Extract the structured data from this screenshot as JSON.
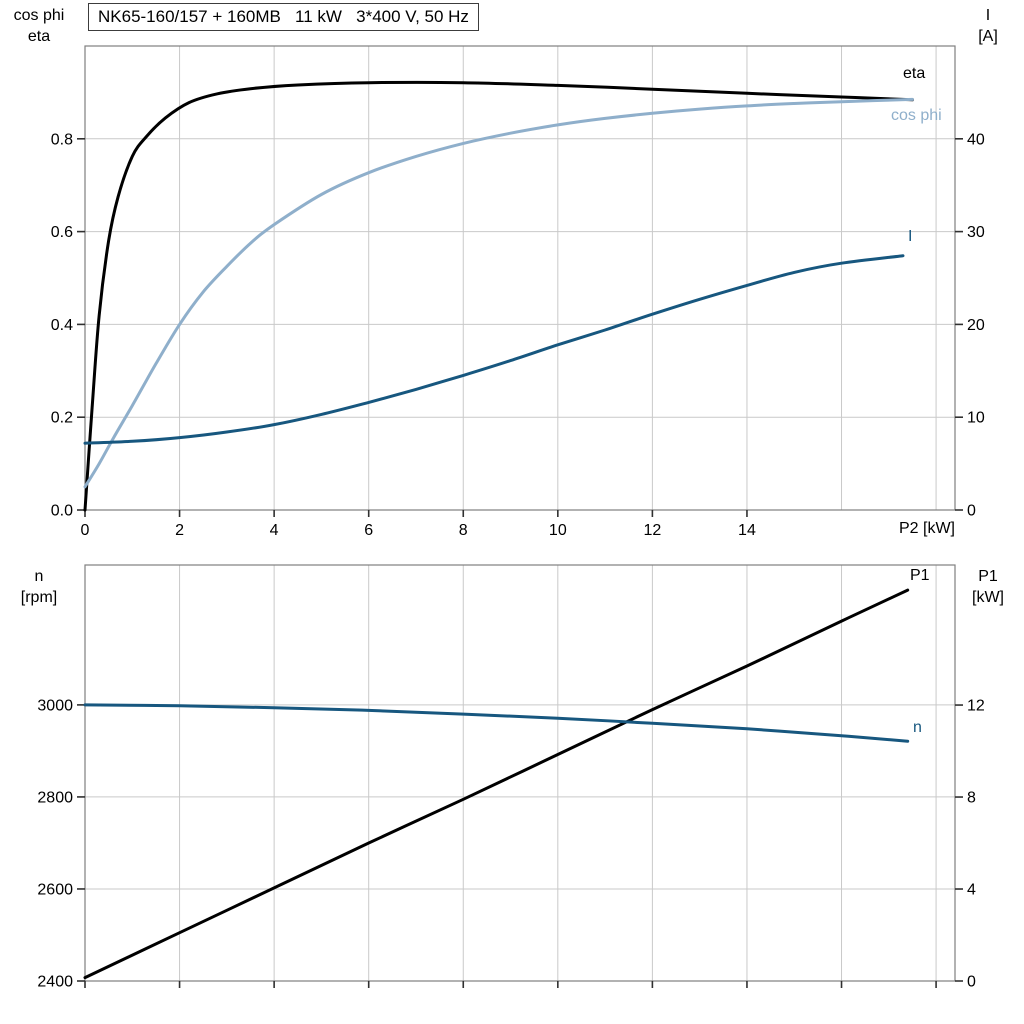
{
  "colors": {
    "background": "#ffffff",
    "grid": "#c9c9c9",
    "frame": "#7f7f7f",
    "tick": "#303030",
    "text": "#000000",
    "eta_black": "#000000",
    "cos_phi_blue": "#8fafcb",
    "dark_blue": "#17577f"
  },
  "chart_data": [
    {
      "id": "electrical-chart",
      "type": "line",
      "title": "NK65-160/157 + 160MB   11 kW   3*400 V, 50 Hz",
      "x_axis": {
        "label": "P2 [kW]",
        "min": 0,
        "max": 18.4,
        "tick_values": [
          0,
          2,
          4,
          6,
          8,
          10,
          12,
          14
        ],
        "tick_labels": [
          "0",
          "2",
          "4",
          "6",
          "8",
          "10",
          "12",
          "14"
        ],
        "grid_values": [
          2,
          4,
          6,
          8,
          10,
          12,
          14,
          16,
          18
        ]
      },
      "y_left": {
        "title1": "cos phi",
        "title2": "eta",
        "min": 0,
        "max": 1.0,
        "tick_values": [
          0,
          0.2,
          0.4,
          0.6,
          0.8
        ],
        "tick_labels": [
          "0.0",
          "0.2",
          "0.4",
          "0.6",
          "0.8"
        ],
        "grid_values": [
          0.2,
          0.4,
          0.6,
          0.8
        ]
      },
      "y_right": {
        "title1": "I",
        "title2": "[A]",
        "min": 0,
        "max": 50,
        "tick_values": [
          0,
          10,
          20,
          30,
          40
        ],
        "tick_labels": [
          "0",
          "10",
          "20",
          "30",
          "40"
        ]
      },
      "series": [
        {
          "name": "eta",
          "label": "eta",
          "axis": "left",
          "color": "#000000",
          "x": [
            0,
            0.15,
            0.3,
            0.5,
            0.7,
            1,
            1.3,
            1.7,
            2.2,
            2.8,
            3.5,
            4.5,
            6,
            8,
            10,
            12,
            14,
            16,
            17.5
          ],
          "y": [
            0,
            0.22,
            0.42,
            0.58,
            0.675,
            0.762,
            0.805,
            0.845,
            0.878,
            0.897,
            0.908,
            0.916,
            0.921,
            0.921,
            0.915,
            0.907,
            0.898,
            0.89,
            0.884
          ]
        },
        {
          "name": "cos-phi",
          "label": "cos phi",
          "axis": "left",
          "color": "#8fafcb",
          "x": [
            0,
            0.3,
            0.6,
            1,
            1.5,
            2,
            2.5,
            3,
            3.5,
            4,
            5,
            6,
            7,
            8,
            9,
            10,
            11,
            12,
            13,
            14,
            15,
            16,
            17.5
          ],
          "y": [
            0.05,
            0.1,
            0.155,
            0.225,
            0.315,
            0.4,
            0.47,
            0.525,
            0.575,
            0.615,
            0.68,
            0.727,
            0.762,
            0.79,
            0.812,
            0.83,
            0.844,
            0.855,
            0.864,
            0.871,
            0.876,
            0.88,
            0.885
          ]
        },
        {
          "name": "current",
          "label": "I",
          "axis": "right",
          "color": "#17577f",
          "x": [
            0,
            1,
            2,
            3,
            4,
            5,
            6,
            7,
            8,
            9,
            10,
            11,
            12,
            13,
            14,
            15,
            16,
            17.3
          ],
          "y": [
            7.2,
            7.4,
            7.8,
            8.4,
            9.2,
            10.3,
            11.6,
            13,
            14.5,
            16.1,
            17.8,
            19.4,
            21.1,
            22.7,
            24.2,
            25.6,
            26.6,
            27.4
          ]
        }
      ]
    },
    {
      "id": "mechanical-chart",
      "type": "line",
      "title": "",
      "x_axis": {
        "label": "",
        "min": 0,
        "max": 18.4,
        "tick_values": [
          0,
          2,
          4,
          6,
          8,
          10,
          12,
          14,
          16,
          18
        ],
        "tick_labels": [],
        "grid_values": [
          2,
          4,
          6,
          8,
          10,
          12,
          14,
          16,
          18
        ]
      },
      "y_left": {
        "title1": "n",
        "title2": "[rpm]",
        "min": 2400,
        "max": 3304,
        "tick_values": [
          2400,
          2600,
          2800,
          3000
        ],
        "tick_labels": [
          "2400",
          "2600",
          "2800",
          "3000"
        ],
        "grid_values": [
          2600,
          2800,
          3000
        ]
      },
      "y_right": {
        "title1": "P1",
        "title2": "[kW]",
        "min": 0,
        "max": 18.09,
        "tick_values": [
          0,
          4,
          8,
          12
        ],
        "tick_labels": [
          "0",
          "4",
          "8",
          "12"
        ]
      },
      "series": [
        {
          "name": "input-power",
          "label": "P1",
          "axis": "right",
          "color": "#000000",
          "x": [
            0,
            2,
            4,
            6,
            8,
            10,
            12,
            14,
            16,
            17.4
          ],
          "y": [
            0.15,
            2.1,
            4.05,
            6,
            7.9,
            9.85,
            11.8,
            13.7,
            15.65,
            17
          ]
        },
        {
          "name": "speed",
          "label": "n",
          "axis": "left",
          "color": "#17577f",
          "x": [
            0,
            2,
            4,
            6,
            8,
            10,
            12,
            14,
            16,
            17.4
          ],
          "y": [
            3000,
            2998,
            2994,
            2988,
            2980,
            2971,
            2960,
            2948,
            2933,
            2921
          ]
        }
      ]
    }
  ]
}
